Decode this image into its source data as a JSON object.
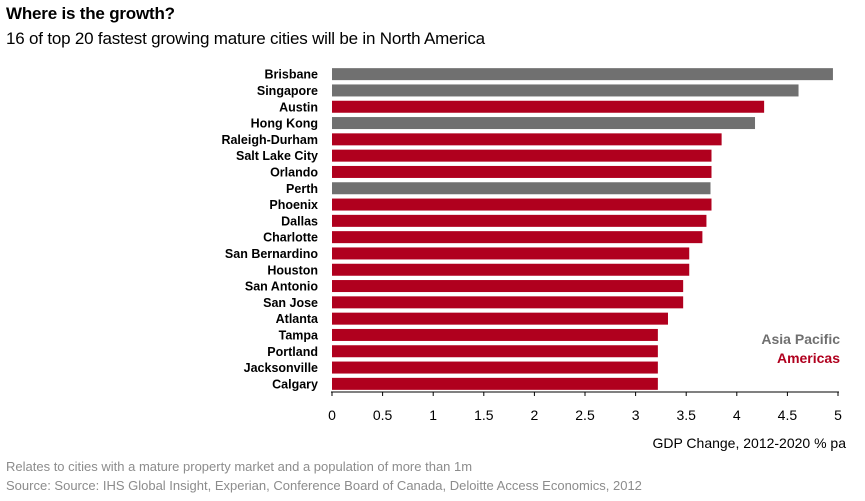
{
  "header": {
    "title": "Where is the growth?",
    "subtitle": "16 of top 20 fastest growing mature cities will be in North America"
  },
  "footnotes": {
    "note1": "Relates to cities with a mature property market and a population of more than 1m",
    "note2": "Source: Source: IHS Global Insight, Experian, Conference Board of Canada, Deloitte Access Economics, 2012"
  },
  "colors": {
    "asia_pacific": "#707070",
    "americas": "#b0001e",
    "axis": "#000000"
  },
  "chart_data": {
    "type": "bar",
    "orientation": "horizontal",
    "categories": [
      "Brisbane",
      "Singapore",
      "Austin",
      "Hong Kong",
      "Raleigh-Durham",
      "Salt Lake City",
      "Orlando",
      "Perth",
      "Phoenix",
      "Dallas",
      "Charlotte",
      "San Bernardino",
      "Houston",
      "San Antonio",
      "San Jose",
      "Atlanta",
      "Tampa",
      "Portland",
      "Jacksonville",
      "Calgary"
    ],
    "values": [
      4.95,
      4.61,
      4.27,
      4.18,
      3.85,
      3.75,
      3.75,
      3.74,
      3.75,
      3.7,
      3.66,
      3.53,
      3.53,
      3.47,
      3.47,
      3.32,
      3.22,
      3.22,
      3.22,
      3.22
    ],
    "groups": [
      "Asia Pacific",
      "Asia Pacific",
      "Americas",
      "Asia Pacific",
      "Americas",
      "Americas",
      "Americas",
      "Asia Pacific",
      "Americas",
      "Americas",
      "Americas",
      "Americas",
      "Americas",
      "Americas",
      "Americas",
      "Americas",
      "Americas",
      "Americas",
      "Americas",
      "Americas"
    ],
    "legend": [
      "Asia Pacific",
      "Americas"
    ],
    "legend_position": "bottom-right",
    "xlabel": "GDP Change, 2012-2020 % pa",
    "xlim": [
      0,
      5
    ],
    "xticks": [
      "0",
      "0.5",
      "1",
      "1.5",
      "2",
      "2.5",
      "3",
      "3.5",
      "4",
      "4.5",
      "5"
    ],
    "grid": false
  }
}
